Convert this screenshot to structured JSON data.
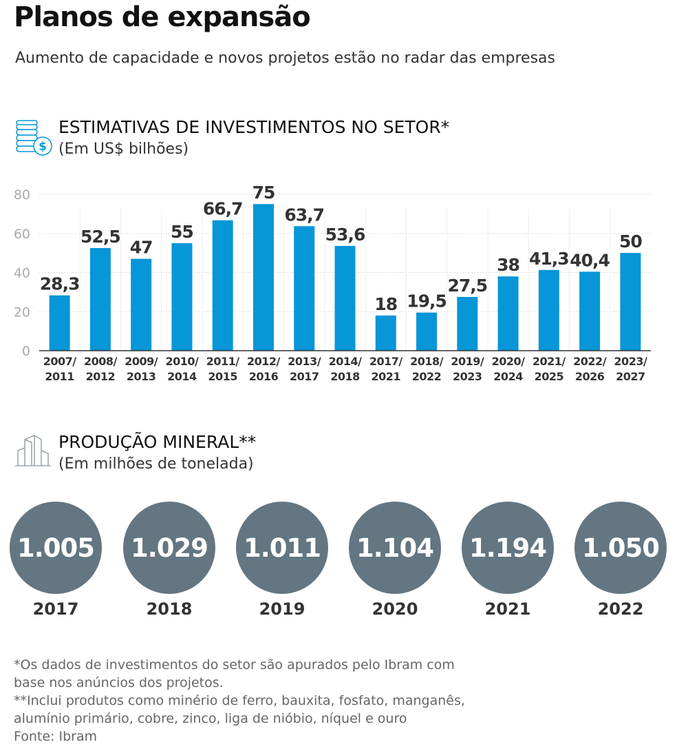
{
  "title": "Planos de expansão",
  "subtitle": "Aumento de capacidade e novos projetos estão no radar das empresas",
  "investments": {
    "icon": "coins-dollar-icon",
    "heading": "ESTIMATIVAS DE INVESTIMENTOS NO SETOR*",
    "unit": "(Em US$ bilhões)"
  },
  "chart_data": {
    "type": "bar",
    "categories": [
      "2007/ 2011",
      "2008/ 2012",
      "2009/ 2013",
      "2010/ 2014",
      "2011/ 2015",
      "2012/ 2016",
      "2013/ 2017",
      "2014/ 2018",
      "2017/ 2021",
      "2018/ 2022",
      "2019/ 2023",
      "2020/ 2024",
      "2021/ 2025",
      "2022/ 2026",
      "2023/ 2027"
    ],
    "values": [
      28.3,
      52.5,
      47,
      55,
      66.7,
      75,
      63.7,
      53.6,
      18,
      19.5,
      27.5,
      38,
      41.3,
      40.4,
      50
    ],
    "data_labels": [
      "28,3",
      "52,5",
      "47",
      "55",
      "66,7",
      "75",
      "63,7",
      "53,6",
      "18",
      "19,5",
      "27,5",
      "38",
      "41,3",
      "40,4",
      "50"
    ],
    "yticks": [
      "0",
      "20",
      "40",
      "60",
      "80"
    ],
    "ylim": [
      0,
      80
    ],
    "grid": true,
    "bar_color": "#0796d8"
  },
  "production": {
    "icon": "buildings-icon",
    "heading": "PRODUÇÃO MINERAL**",
    "unit": "(Em milhões de tonelada)",
    "items": [
      {
        "year": "2017",
        "value": "1.005"
      },
      {
        "year": "2018",
        "value": "1.029"
      },
      {
        "year": "2019",
        "value": "1.011"
      },
      {
        "year": "2020",
        "value": "1.104"
      },
      {
        "year": "2021",
        "value": "1.194"
      },
      {
        "year": "2022",
        "value": "1.050"
      }
    ],
    "circle_color": "#637681"
  },
  "notes": [
    "*Os dados de investimentos do setor são apurados pelo Ibram com",
    "base nos anúncios dos projetos.",
    "**Inclui produtos como minério de ferro, bauxita, fosfato, manganês,",
    "alumínio primário, cobre, zinco, liga de nióbio, níquel e ouro",
    "Fonte: Ibram"
  ]
}
